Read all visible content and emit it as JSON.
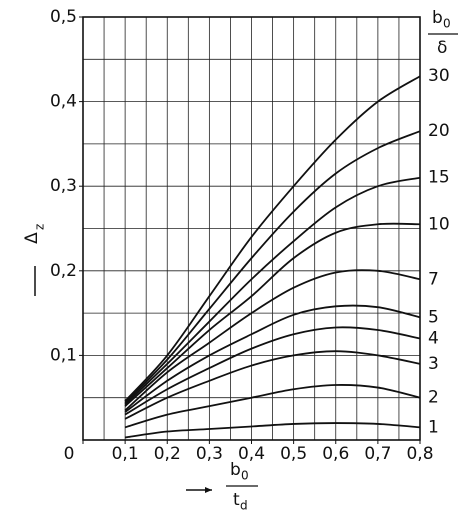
{
  "chart_data": {
    "type": "line",
    "x_label": {
      "num": "b",
      "num_sub": "0",
      "den": "t",
      "den_sub": "d"
    },
    "y_label": {
      "main": "Δ",
      "sub": "z"
    },
    "legend_title": {
      "num": "b",
      "num_sub": "0",
      "den": "δ"
    },
    "x": [
      0.1,
      0.2,
      0.3,
      0.4,
      0.5,
      0.6,
      0.7,
      0.8
    ],
    "series": [
      {
        "name": "30",
        "color": "#111111",
        "values": [
          0.046,
          0.1,
          0.17,
          0.24,
          0.3,
          0.355,
          0.4,
          0.43
        ]
      },
      {
        "name": "20",
        "color": "#111111",
        "values": [
          0.044,
          0.095,
          0.155,
          0.215,
          0.27,
          0.315,
          0.345,
          0.365
        ]
      },
      {
        "name": "15",
        "color": "#111111",
        "values": [
          0.042,
          0.09,
          0.14,
          0.19,
          0.235,
          0.275,
          0.3,
          0.31
        ]
      },
      {
        "name": "10",
        "color": "#111111",
        "values": [
          0.04,
          0.085,
          0.13,
          0.17,
          0.215,
          0.245,
          0.255,
          0.255
        ]
      },
      {
        "name": "7",
        "color": "#111111",
        "values": [
          0.035,
          0.08,
          0.115,
          0.15,
          0.18,
          0.198,
          0.2,
          0.19
        ]
      },
      {
        "name": "5",
        "color": "#111111",
        "values": [
          0.033,
          0.07,
          0.1,
          0.125,
          0.148,
          0.158,
          0.157,
          0.145
        ]
      },
      {
        "name": "4",
        "color": "#111111",
        "values": [
          0.03,
          0.06,
          0.085,
          0.108,
          0.125,
          0.133,
          0.13,
          0.12
        ]
      },
      {
        "name": "3",
        "color": "#111111",
        "values": [
          0.025,
          0.05,
          0.07,
          0.088,
          0.1,
          0.105,
          0.1,
          0.09
        ]
      },
      {
        "name": "2",
        "color": "#111111",
        "values": [
          0.015,
          0.03,
          0.04,
          0.05,
          0.06,
          0.065,
          0.062,
          0.05
        ]
      },
      {
        "name": "1",
        "color": "#111111",
        "values": [
          0.003,
          0.01,
          0.013,
          0.016,
          0.019,
          0.02,
          0.019,
          0.015
        ]
      }
    ],
    "xlim": [
      0,
      0.8
    ],
    "ylim": [
      0,
      0.5
    ],
    "xticks": [
      {
        "value": 0,
        "label": "0"
      },
      {
        "value": 0.1,
        "label": "0,1"
      },
      {
        "value": 0.2,
        "label": "0,2"
      },
      {
        "value": 0.3,
        "label": "0,3"
      },
      {
        "value": 0.4,
        "label": "0,4"
      },
      {
        "value": 0.5,
        "label": "0,5"
      },
      {
        "value": 0.6,
        "label": "0,6"
      },
      {
        "value": 0.7,
        "label": "0,7"
      },
      {
        "value": 0.8,
        "label": "0,8"
      }
    ],
    "yticks": [
      {
        "value": 0.1,
        "label": "0,1"
      },
      {
        "value": 0.2,
        "label": "0,2"
      },
      {
        "value": 0.3,
        "label": "0,3"
      },
      {
        "value": 0.4,
        "label": "0,4"
      },
      {
        "value": 0.5,
        "label": "0,5"
      }
    ],
    "grid": true,
    "grid_step": 0.05
  }
}
